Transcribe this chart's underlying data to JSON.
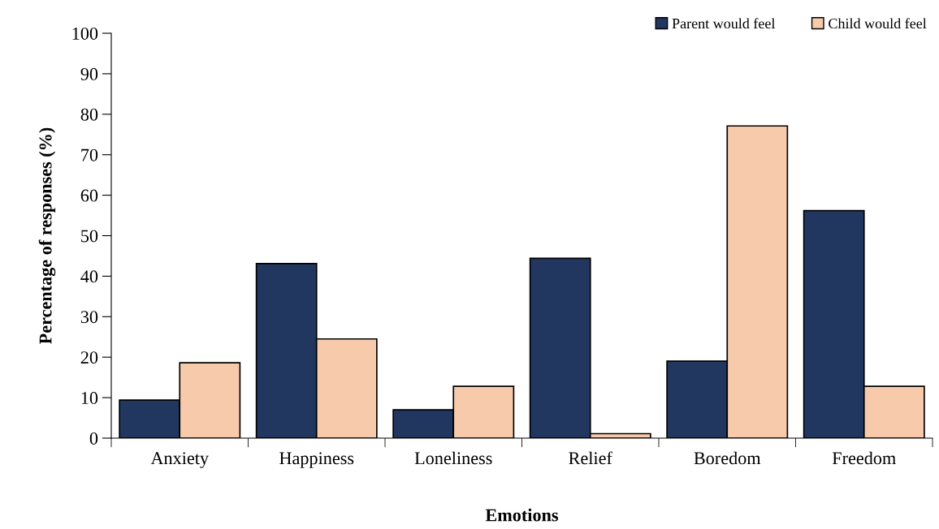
{
  "chart_data": {
    "type": "bar",
    "xlabel": "Emotions",
    "ylabel": "Percentage of responses (%)",
    "categories": [
      "Anxiety",
      "Happiness",
      "Loneliness",
      "Relief",
      "Boredom",
      "Freedom"
    ],
    "series": [
      {
        "name": "Parent would feel",
        "color": "#22375f",
        "values": [
          9.4,
          43.1,
          7.0,
          44.4,
          19.0,
          56.2
        ]
      },
      {
        "name": "Child would feel",
        "color": "#f7caac",
        "values": [
          18.6,
          24.5,
          12.8,
          1.1,
          77.1,
          12.8
        ]
      }
    ],
    "ylim": [
      0,
      100
    ],
    "yticks": [
      0,
      10,
      20,
      30,
      40,
      50,
      60,
      70,
      80,
      90,
      100
    ],
    "grid": false,
    "legend": "top right"
  }
}
